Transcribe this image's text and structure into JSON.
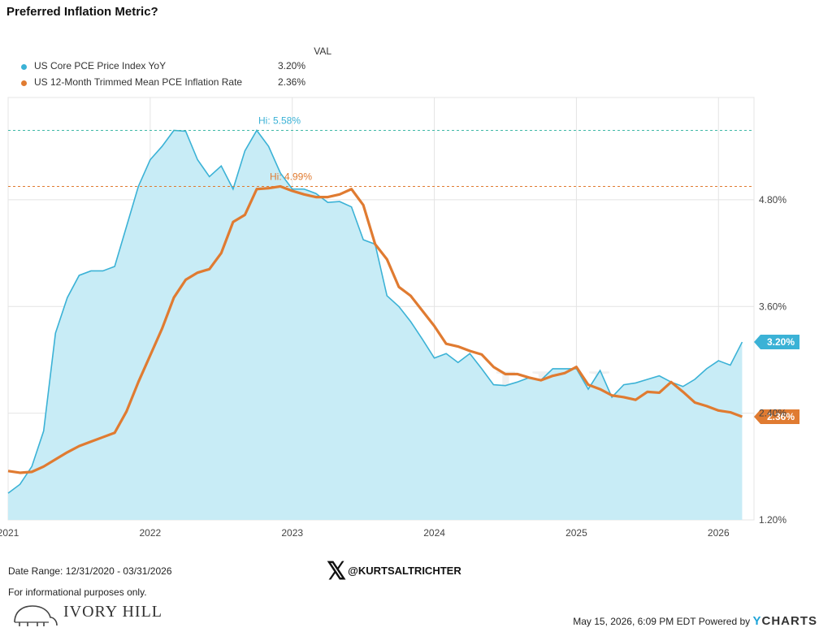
{
  "title": "Preferred Inflation Metric?",
  "legend": {
    "header": "VAL",
    "items": [
      {
        "name": "US Core PCE Price Index YoY",
        "value": "3.20%"
      },
      {
        "name": "US 12-Month Trimmed Mean PCE Inflation Rate",
        "value": "2.36%"
      }
    ]
  },
  "colors": {
    "core_pce": "#3bb2d6",
    "core_pce_fill": "#c8ecf6",
    "trimmed_mean": "#e07b31",
    "grid": "#e4e4e4"
  },
  "annotations": {
    "core_pce_high": "Hi: 5.58%",
    "trimmed_mean_high": "Hi: 4.99%",
    "core_pce_last": "3.20%",
    "trimmed_mean_last": "2.36%"
  },
  "watermark": "IVORY HILL",
  "chart_data": {
    "type": "area",
    "ylim": [
      1.2,
      5.95
    ],
    "y_ticks": [
      "1.20%",
      "2.40%",
      "3.60%",
      "4.80%"
    ],
    "x_ticks": [
      "2021",
      "2022",
      "2023",
      "2024",
      "2025",
      "2026"
    ],
    "x_range": [
      "2020-12-31",
      "2026-03-31"
    ],
    "grid": true,
    "series": [
      {
        "name": "US Core PCE Price Index YoY",
        "type": "area",
        "points": [
          [
            "2020-12",
            1.5
          ],
          [
            "2021-01",
            1.6
          ],
          [
            "2021-02",
            1.8
          ],
          [
            "2021-03",
            2.2
          ],
          [
            "2021-04",
            3.3
          ],
          [
            "2021-05",
            3.7
          ],
          [
            "2021-06",
            3.95
          ],
          [
            "2021-07",
            4.0
          ],
          [
            "2021-08",
            4.0
          ],
          [
            "2021-09",
            4.05
          ],
          [
            "2021-10",
            4.5
          ],
          [
            "2021-11",
            4.95
          ],
          [
            "2021-12",
            5.25
          ],
          [
            "2022-01",
            5.4
          ],
          [
            "2022-02",
            5.58
          ],
          [
            "2022-03",
            5.57
          ],
          [
            "2022-04",
            5.25
          ],
          [
            "2022-05",
            5.06
          ],
          [
            "2022-06",
            5.18
          ],
          [
            "2022-07",
            4.92
          ],
          [
            "2022-08",
            5.35
          ],
          [
            "2022-09",
            5.58
          ],
          [
            "2022-10",
            5.4
          ],
          [
            "2022-11",
            5.1
          ],
          [
            "2022-12",
            4.92
          ],
          [
            "2023-01",
            4.92
          ],
          [
            "2023-02",
            4.87
          ],
          [
            "2023-03",
            4.77
          ],
          [
            "2023-04",
            4.78
          ],
          [
            "2023-05",
            4.72
          ],
          [
            "2023-06",
            4.35
          ],
          [
            "2023-07",
            4.3
          ],
          [
            "2023-08",
            3.72
          ],
          [
            "2023-09",
            3.6
          ],
          [
            "2023-10",
            3.43
          ],
          [
            "2023-11",
            3.23
          ],
          [
            "2023-12",
            3.02
          ],
          [
            "2024-01",
            3.07
          ],
          [
            "2024-02",
            2.97
          ],
          [
            "2024-03",
            3.07
          ],
          [
            "2024-04",
            2.9
          ],
          [
            "2024-05",
            2.72
          ],
          [
            "2024-06",
            2.71
          ],
          [
            "2024-07",
            2.75
          ],
          [
            "2024-08",
            2.8
          ],
          [
            "2024-09",
            2.77
          ],
          [
            "2024-10",
            2.9
          ],
          [
            "2024-11",
            2.9
          ],
          [
            "2024-12",
            2.9
          ],
          [
            "2025-01",
            2.67
          ],
          [
            "2025-02",
            2.88
          ],
          [
            "2025-03",
            2.58
          ],
          [
            "2025-04",
            2.72
          ],
          [
            "2025-05",
            2.74
          ],
          [
            "2025-06",
            2.78
          ],
          [
            "2025-07",
            2.82
          ],
          [
            "2025-08",
            2.75
          ],
          [
            "2025-09",
            2.7
          ],
          [
            "2025-10",
            2.78
          ],
          [
            "2025-11",
            2.9
          ],
          [
            "2025-12",
            2.99
          ],
          [
            "2026-01",
            2.94
          ],
          [
            "2026-02",
            3.2
          ]
        ]
      },
      {
        "name": "US 12-Month Trimmed Mean PCE Inflation Rate",
        "type": "line",
        "points": [
          [
            "2020-12",
            1.75
          ],
          [
            "2021-01",
            1.73
          ],
          [
            "2021-02",
            1.74
          ],
          [
            "2021-03",
            1.8
          ],
          [
            "2021-04",
            1.88
          ],
          [
            "2021-05",
            1.96
          ],
          [
            "2021-06",
            2.03
          ],
          [
            "2021-07",
            2.08
          ],
          [
            "2021-08",
            2.13
          ],
          [
            "2021-09",
            2.18
          ],
          [
            "2021-10",
            2.42
          ],
          [
            "2021-11",
            2.75
          ],
          [
            "2021-12",
            3.05
          ],
          [
            "2022-01",
            3.35
          ],
          [
            "2022-02",
            3.7
          ],
          [
            "2022-03",
            3.9
          ],
          [
            "2022-04",
            3.98
          ],
          [
            "2022-05",
            4.02
          ],
          [
            "2022-06",
            4.2
          ],
          [
            "2022-07",
            4.55
          ],
          [
            "2022-08",
            4.63
          ],
          [
            "2022-09",
            4.92
          ],
          [
            "2022-10",
            4.93
          ],
          [
            "2022-11",
            4.95
          ],
          [
            "2022-12",
            4.9
          ],
          [
            "2023-01",
            4.86
          ],
          [
            "2023-02",
            4.83
          ],
          [
            "2023-03",
            4.83
          ],
          [
            "2023-04",
            4.86
          ],
          [
            "2023-05",
            4.92
          ],
          [
            "2023-06",
            4.74
          ],
          [
            "2023-07",
            4.3
          ],
          [
            "2023-08",
            4.13
          ],
          [
            "2023-09",
            3.82
          ],
          [
            "2023-10",
            3.72
          ],
          [
            "2023-11",
            3.55
          ],
          [
            "2023-12",
            3.38
          ],
          [
            "2024-01",
            3.18
          ],
          [
            "2024-02",
            3.15
          ],
          [
            "2024-03",
            3.1
          ],
          [
            "2024-04",
            3.06
          ],
          [
            "2024-05",
            2.92
          ],
          [
            "2024-06",
            2.84
          ],
          [
            "2024-07",
            2.84
          ],
          [
            "2024-08",
            2.8
          ],
          [
            "2024-09",
            2.77
          ],
          [
            "2024-10",
            2.82
          ],
          [
            "2024-11",
            2.85
          ],
          [
            "2024-12",
            2.92
          ],
          [
            "2025-01",
            2.72
          ],
          [
            "2025-02",
            2.67
          ],
          [
            "2025-03",
            2.6
          ],
          [
            "2025-04",
            2.58
          ],
          [
            "2025-05",
            2.55
          ],
          [
            "2025-06",
            2.64
          ],
          [
            "2025-07",
            2.63
          ],
          [
            "2025-08",
            2.75
          ],
          [
            "2025-09",
            2.64
          ],
          [
            "2025-10",
            2.52
          ],
          [
            "2025-11",
            2.48
          ],
          [
            "2025-12",
            2.43
          ],
          [
            "2026-01",
            2.41
          ],
          [
            "2026-02",
            2.36
          ]
        ]
      }
    ]
  },
  "footer": {
    "date_range": "Date Range: 12/31/2020 - 03/31/2026",
    "disclaimer": "For informational purposes only.",
    "handle": "@KURTSALTRICHTER",
    "brand": "IVORY HILL",
    "timestamp": "May 15, 2026, 6:09 PM EDT Powered by",
    "powered_by_y": "Y",
    "powered_by_rest": "CHARTS"
  }
}
